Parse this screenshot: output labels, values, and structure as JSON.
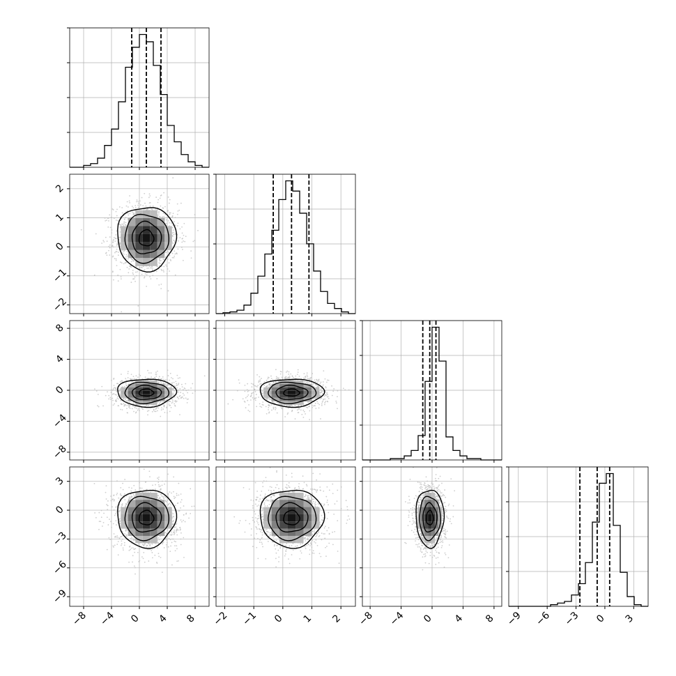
{
  "chart_data": {
    "type": "corner",
    "title": "",
    "grid": true,
    "parameters": [
      {
        "range": [
          -10,
          10
        ],
        "ticks": [
          -8,
          -4,
          0,
          4,
          8
        ],
        "tick_labels": [
          "−8",
          "−4",
          "0",
          "4",
          "8"
        ],
        "quantiles": [
          -1.1,
          1.0,
          3.1
        ],
        "hist_bin_edges": [
          -10,
          -9,
          -8,
          -7,
          -6,
          -5,
          -4,
          -3,
          -2,
          -1,
          0,
          1,
          2,
          3,
          4,
          5,
          6,
          7,
          8,
          9,
          10
        ],
        "hist_counts": [
          0,
          0,
          1,
          2,
          5,
          12,
          21,
          36,
          55,
          66,
          73,
          69,
          56,
          40,
          23,
          14,
          7,
          3,
          1,
          0
        ],
        "kde_mean": 1.0,
        "kde_sigma": 2.1
      },
      {
        "range": [
          -2.3,
          2.5
        ],
        "ticks": [
          -2,
          -1,
          0,
          1,
          2
        ],
        "tick_labels": [
          "−2",
          "−1",
          "0",
          "1",
          "2"
        ],
        "quantiles": [
          -0.33,
          0.3,
          0.9
        ],
        "hist_bin_edges": [
          -2.3,
          -2.06,
          -1.82,
          -1.58,
          -1.34,
          -1.1,
          -0.86,
          -0.62,
          -0.38,
          -0.14,
          0.1,
          0.34,
          0.58,
          0.82,
          1.06,
          1.3,
          1.54,
          1.78,
          2.02,
          2.26,
          2.5
        ],
        "hist_counts": [
          0,
          0.5,
          1,
          2,
          5,
          12,
          22,
          35,
          49,
          67,
          78,
          72,
          59,
          41,
          25,
          13,
          6,
          3,
          1,
          0
        ],
        "kde_mean": 0.3,
        "kde_sigma": 0.55
      },
      {
        "range": [
          -9,
          9
        ],
        "ticks": [
          -8,
          -4,
          0,
          4,
          8
        ],
        "tick_labels": [
          "−8",
          "−4",
          "0",
          "4",
          "8"
        ],
        "quantiles": [
          -1.2,
          -0.3,
          0.5
        ],
        "hist_bin_edges": [
          -9,
          -8.1,
          -7.2,
          -6.3,
          -5.4,
          -4.5,
          -3.6,
          -2.7,
          -1.8,
          -0.9,
          0,
          0.9,
          1.8,
          2.7,
          3.6,
          4.5,
          5.4,
          6.3,
          7.2,
          8.1,
          9
        ],
        "hist_counts": [
          0,
          0,
          0,
          0,
          1,
          1,
          3,
          7,
          18,
          58,
          98,
          73,
          17,
          7,
          3,
          1,
          1,
          0,
          0,
          0
        ],
        "kde_mean": -0.3,
        "kde_sigma": 0.9
      },
      {
        "range": [
          -10,
          4.5
        ],
        "ticks": [
          -9,
          -6,
          -3,
          0,
          3
        ],
        "tick_labels": [
          "−9",
          "−6",
          "−3",
          "0",
          "3"
        ],
        "quantiles": [
          -2.6,
          -0.8,
          0.5
        ],
        "hist_bin_edges": [
          -10,
          -9.275,
          -8.55,
          -7.825,
          -7.1,
          -6.375,
          -5.65,
          -4.925,
          -4.2,
          -3.475,
          -2.75,
          -2.025,
          -1.3,
          -0.575,
          0.15,
          0.875,
          1.6,
          2.325,
          3.05,
          3.775,
          4.5
        ],
        "hist_counts": [
          0,
          0,
          0,
          0,
          0,
          0,
          1,
          2,
          3,
          7,
          14,
          27,
          52,
          76,
          82,
          50,
          21,
          6,
          1,
          0
        ],
        "kde_mean": -0.8,
        "kde_sigma": 1.5
      }
    ],
    "pairs": [
      {
        "x": 0,
        "y": 1,
        "center": [
          1.0,
          0.3
        ],
        "sigma": [
          2.1,
          0.55
        ]
      },
      {
        "x": 0,
        "y": 2,
        "center": [
          1.0,
          -0.3
        ],
        "sigma": [
          2.1,
          0.9
        ]
      },
      {
        "x": 1,
        "y": 2,
        "center": [
          0.3,
          -0.3
        ],
        "sigma": [
          0.55,
          0.9
        ]
      },
      {
        "x": 0,
        "y": 3,
        "center": [
          1.0,
          -0.8
        ],
        "sigma": [
          2.1,
          1.5
        ]
      },
      {
        "x": 1,
        "y": 3,
        "center": [
          0.3,
          -0.8
        ],
        "sigma": [
          0.55,
          1.5
        ]
      },
      {
        "x": 2,
        "y": 3,
        "center": [
          -0.3,
          -0.8
        ],
        "sigma": [
          0.9,
          1.5
        ]
      }
    ],
    "contour_levels_sigma": [
      0.5,
      1.0,
      1.5,
      2.0
    ],
    "colors": {
      "line": "#000000",
      "scatter": "#c0c0c0",
      "grid": "#b0b0b0",
      "frame": "#000000"
    }
  }
}
